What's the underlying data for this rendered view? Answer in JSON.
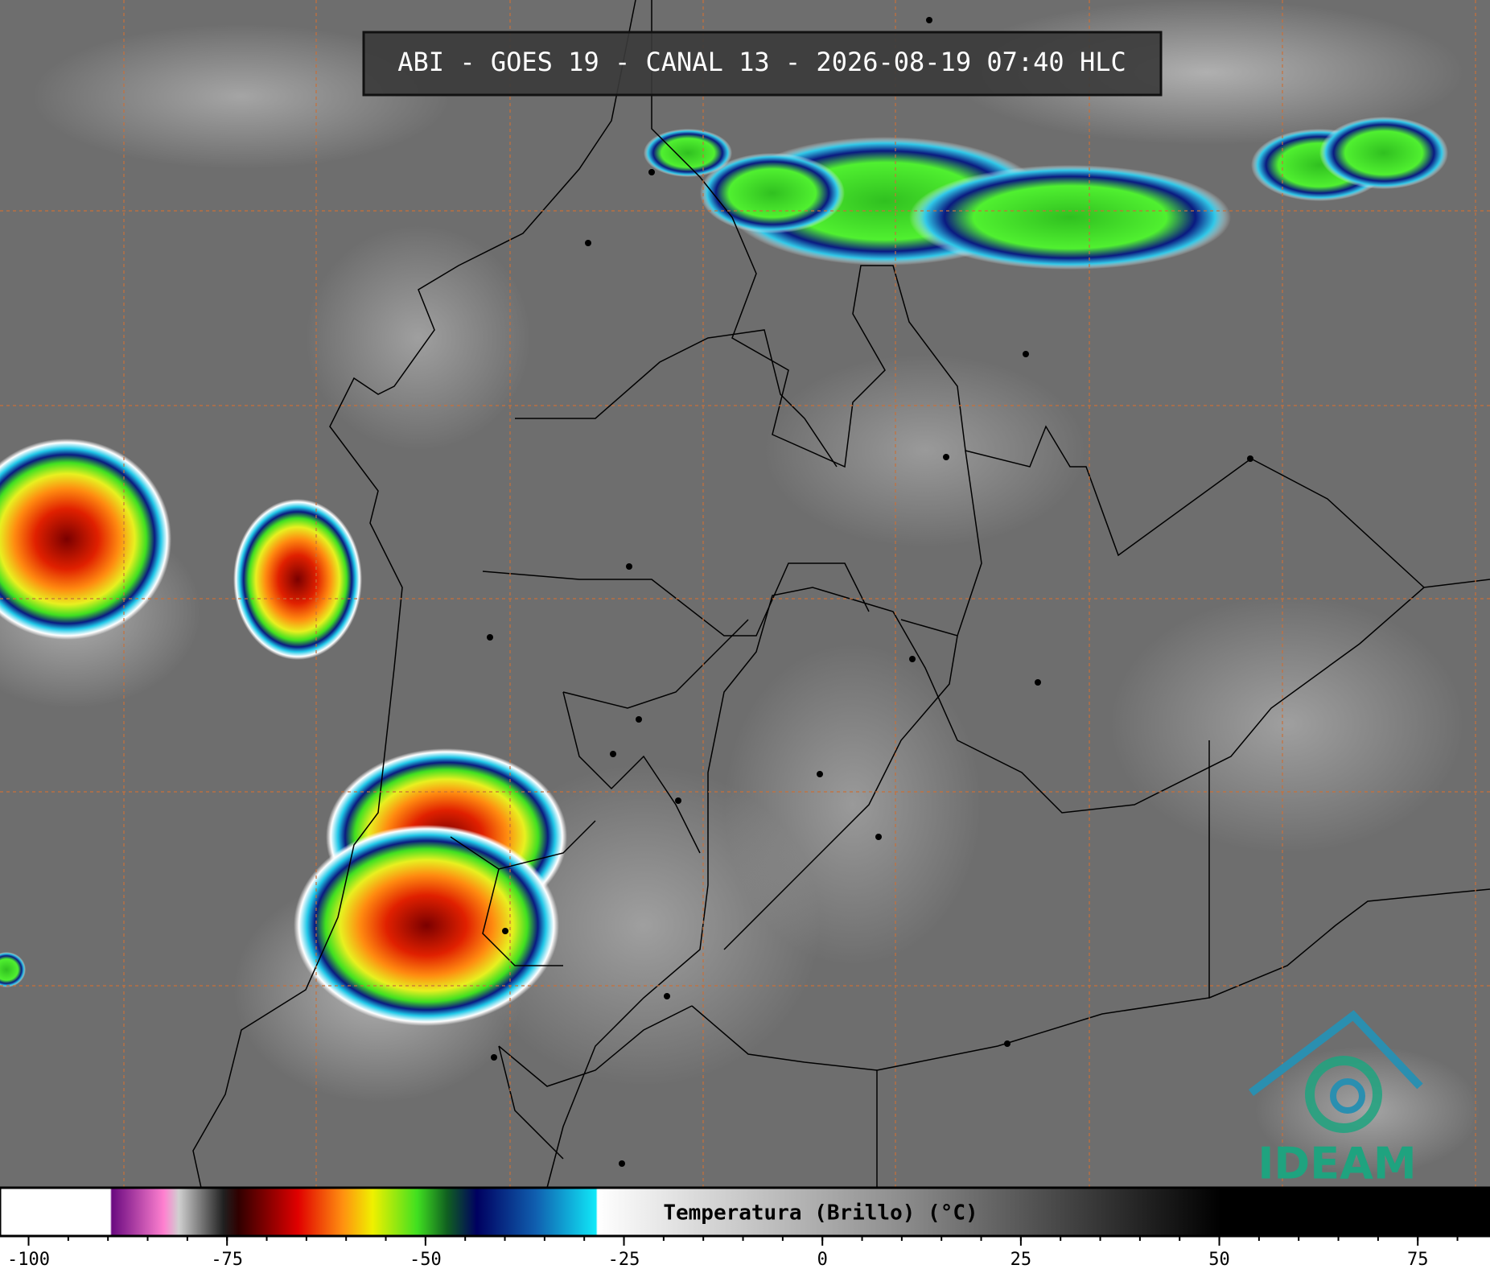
{
  "title": "ABI - GOES 19 - CANAL 13 - 2026-08-19 07:40 HLC",
  "colorbar": {
    "label": "Temperatura (Brillo) (°C)",
    "range": [
      -103.6,
      84.1
    ],
    "ticks": [
      -100,
      -75,
      -50,
      -25,
      0,
      25,
      50,
      75
    ]
  },
  "logo": "IDEAM"
}
